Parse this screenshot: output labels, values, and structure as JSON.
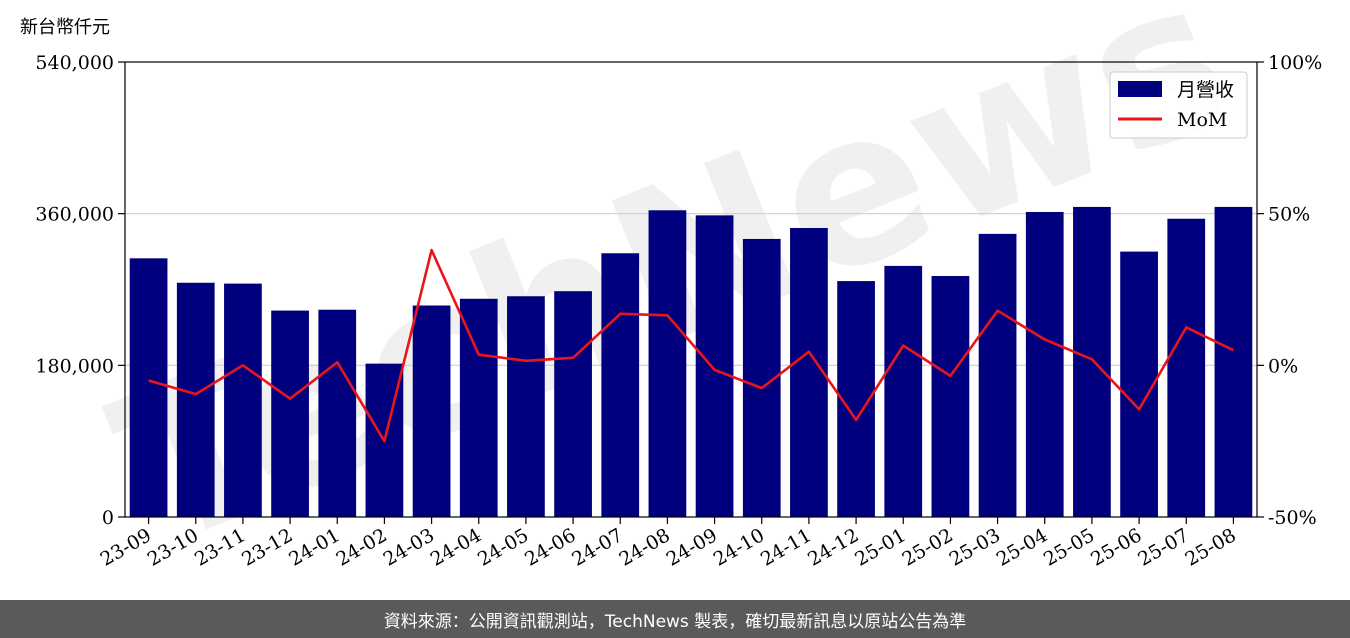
{
  "chart_data": {
    "type": "bar",
    "unit_label": "新台幣仟元",
    "categories": [
      "23-09",
      "23-10",
      "23-11",
      "23-12",
      "24-01",
      "24-02",
      "24-03",
      "24-04",
      "24-05",
      "24-06",
      "24-07",
      "24-08",
      "24-09",
      "24-10",
      "24-11",
      "24-12",
      "25-01",
      "25-02",
      "25-03",
      "25-04",
      "25-05",
      "25-06",
      "25-07",
      "25-08"
    ],
    "series": [
      {
        "name": "月營收",
        "type": "bar",
        "axis": "left",
        "color": "#00007f",
        "values": [
          307000,
          278000,
          277000,
          245000,
          246000,
          182000,
          251000,
          259000,
          262000,
          268000,
          313000,
          364000,
          358000,
          330000,
          343000,
          280000,
          298000,
          286000,
          336000,
          362000,
          368000,
          315000,
          354000,
          368000
        ]
      },
      {
        "name": "MoM",
        "type": "line",
        "axis": "right",
        "color": "#e8151b",
        "values": [
          -5,
          -9.5,
          0,
          -11,
          1,
          -25,
          38,
          3.5,
          1.5,
          2.5,
          17,
          16.5,
          -1.5,
          -7.5,
          4.5,
          -18,
          6.5,
          -3.5,
          18,
          8.5,
          2,
          -14.5,
          12.5,
          5
        ]
      }
    ],
    "y_left": {
      "min": 0,
      "max": 540000,
      "ticks": [
        0,
        180000,
        360000,
        540000
      ],
      "tick_labels": [
        "0",
        "180,000",
        "360,000",
        "540,000"
      ]
    },
    "y_right": {
      "min": -50,
      "max": 100,
      "ticks": [
        -50,
        0,
        50,
        100
      ],
      "tick_labels": [
        "-50%",
        "0%",
        "50%",
        "100%"
      ]
    },
    "grid": true,
    "legend": {
      "placement": "top-right",
      "entries": [
        "月營收",
        "MoM"
      ]
    },
    "watermark": "TechNews"
  },
  "footer": {
    "text": "資料來源：公開資訊觀測站，TechNews 製表，確切最新訊息以原站公告為準"
  }
}
